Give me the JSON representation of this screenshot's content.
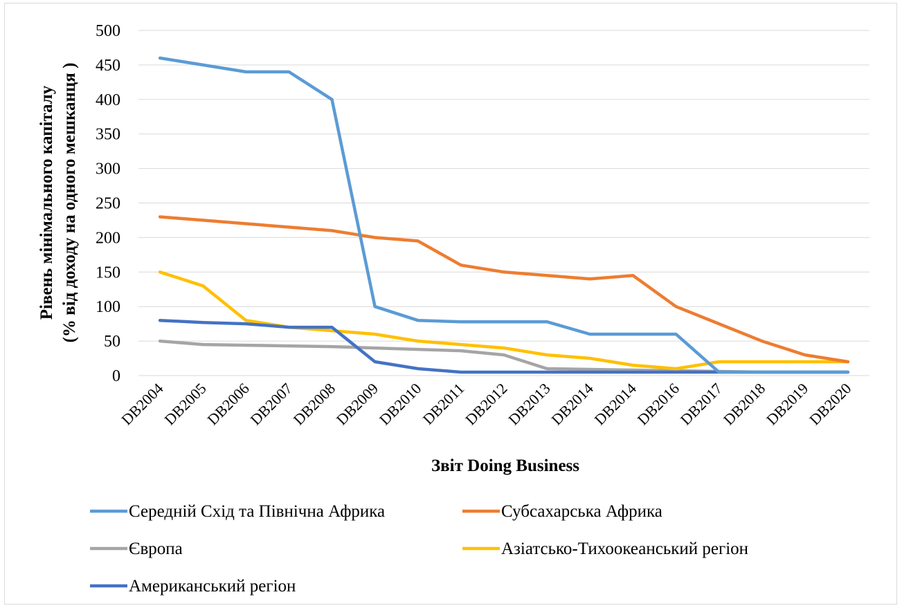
{
  "chart_data": {
    "type": "line",
    "title": "",
    "xlabel": "Звіт Doing Business",
    "ylabel": [
      "Рівень мінімального капіталу",
      "(% від доходу на одного мешканця )"
    ],
    "ylim": [
      0,
      500
    ],
    "yticks": [
      "0",
      "50",
      "100",
      "150",
      "200",
      "250",
      "300",
      "350",
      "400",
      "450",
      "500"
    ],
    "grid": true,
    "legend_position": "bottom",
    "categories": [
      "DB2004",
      "DB2005",
      "DB2006",
      "DB2007",
      "DB2008",
      "DB2009",
      "DB2010",
      "DB2011",
      "DB2012",
      "DB2013",
      "DB2014",
      "DB2014",
      "DB2016",
      "DB2017",
      "DB2018",
      "DB2019",
      "DB2020"
    ],
    "series": [
      {
        "name": "Середній Схід та Північна Африка",
        "color": "#5B9BD5",
        "values": [
          460,
          450,
          440,
          440,
          400,
          100,
          80,
          78,
          78,
          78,
          60,
          60,
          60,
          5,
          5,
          5,
          5
        ]
      },
      {
        "name": "Субсахарська Африка",
        "color": "#ED7D31",
        "values": [
          230,
          225,
          220,
          215,
          210,
          200,
          195,
          160,
          150,
          145,
          140,
          145,
          100,
          75,
          50,
          30,
          20
        ]
      },
      {
        "name": "Європа",
        "color": "#A5A5A5",
        "values": [
          50,
          45,
          44,
          43,
          42,
          40,
          38,
          36,
          30,
          10,
          9,
          8,
          7,
          6,
          5,
          5,
          5
        ]
      },
      {
        "name": "Азіатсько-Тихоокеанський регіон",
        "color": "#FFC000",
        "values": [
          150,
          130,
          80,
          70,
          65,
          60,
          50,
          45,
          40,
          30,
          25,
          15,
          10,
          20,
          20,
          20,
          20
        ]
      },
      {
        "name": "Американський регіон",
        "color": "#4472C4",
        "values": [
          80,
          77,
          75,
          70,
          70,
          20,
          10,
          5,
          5,
          5,
          5,
          5,
          5,
          5,
          5,
          5,
          5
        ]
      }
    ]
  }
}
